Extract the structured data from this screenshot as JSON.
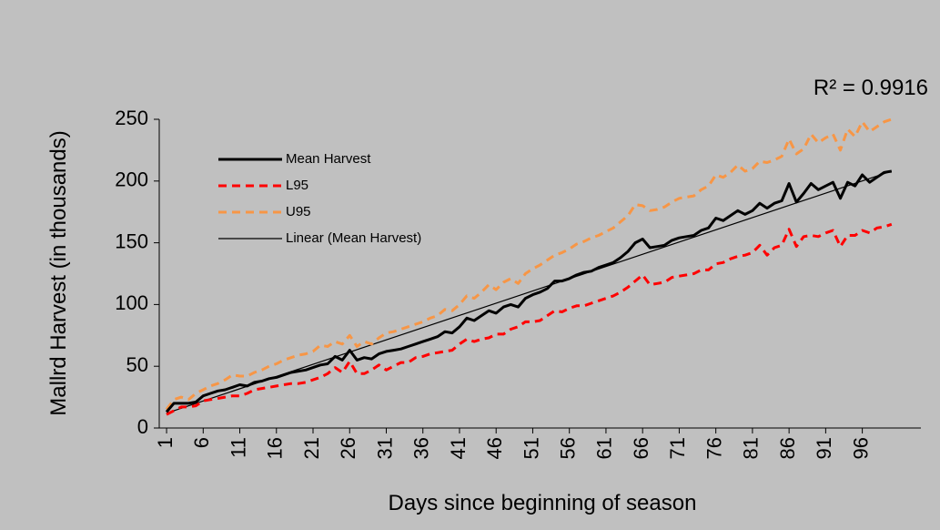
{
  "chart_data": {
    "type": "line",
    "ylabel": "Mallrd Harvest (in thousands)",
    "xlabel": "Days since beginning of season",
    "annotation": "R² = 0.9916",
    "x": [
      1,
      2,
      3,
      4,
      5,
      6,
      7,
      8,
      9,
      10,
      11,
      12,
      13,
      14,
      15,
      16,
      17,
      18,
      19,
      20,
      21,
      22,
      23,
      24,
      25,
      26,
      27,
      28,
      29,
      30,
      31,
      32,
      33,
      34,
      35,
      36,
      37,
      38,
      39,
      40,
      41,
      42,
      43,
      44,
      45,
      46,
      47,
      48,
      49,
      50,
      51,
      52,
      53,
      54,
      55,
      56,
      57,
      58,
      59,
      60,
      61,
      62,
      63,
      64,
      65,
      66,
      67,
      68,
      69,
      70,
      71,
      72,
      73,
      74,
      75,
      76,
      77,
      78,
      79,
      80,
      81,
      82,
      83,
      84,
      85,
      86,
      87,
      88,
      89,
      90,
      91,
      92,
      93,
      94,
      95,
      96,
      97,
      98,
      99,
      100
    ],
    "xlim": [
      0,
      104
    ],
    "xticks": [
      1,
      6,
      11,
      16,
      21,
      26,
      31,
      36,
      41,
      46,
      51,
      56,
      61,
      66,
      71,
      76,
      81,
      86,
      91,
      96
    ],
    "ylim": [
      0,
      250
    ],
    "yticks": [
      0,
      50,
      100,
      150,
      200,
      250
    ],
    "series": [
      {
        "name": "Mean Harvest",
        "color": "#000000",
        "dash": false,
        "width": 3,
        "values": [
          13,
          20,
          20,
          20,
          21,
          26,
          28,
          30,
          31,
          33,
          35,
          34,
          37,
          38,
          40,
          41,
          43,
          45,
          46,
          47,
          49,
          51,
          52,
          58,
          55,
          63,
          55,
          57,
          56,
          60,
          62,
          63,
          64,
          66,
          68,
          70,
          72,
          74,
          78,
          77,
          82,
          89,
          87,
          91,
          95,
          93,
          98,
          100,
          98,
          105,
          108,
          110,
          113,
          119,
          119,
          121,
          124,
          126,
          127,
          130,
          132,
          134,
          138,
          143,
          150,
          153,
          146,
          147,
          148,
          152,
          154,
          155,
          156,
          160,
          162,
          170,
          168,
          172,
          176,
          173,
          176,
          182,
          178,
          182,
          184,
          198,
          183,
          190,
          198,
          193,
          196,
          199,
          186,
          199,
          196,
          205,
          199,
          203,
          207,
          208
        ]
      },
      {
        "name": "L95",
        "color": "#ff0000",
        "dash": true,
        "width": 3,
        "values": [
          11,
          14,
          17,
          17,
          18,
          22,
          23,
          24,
          25,
          26,
          26,
          28,
          31,
          32,
          33,
          34,
          35,
          36,
          36,
          37,
          39,
          41,
          44,
          49,
          45,
          54,
          44,
          44,
          47,
          51,
          47,
          50,
          53,
          53,
          57,
          58,
          60,
          61,
          62,
          63,
          68,
          72,
          70,
          72,
          73,
          76,
          76,
          80,
          82,
          86,
          86,
          87,
          91,
          95,
          94,
          97,
          99,
          99,
          101,
          103,
          105,
          107,
          110,
          114,
          119,
          124,
          116,
          117,
          118,
          122,
          123,
          124,
          125,
          128,
          128,
          133,
          134,
          137,
          139,
          140,
          142,
          148,
          140,
          146,
          148,
          161,
          147,
          155,
          156,
          155,
          158,
          160,
          147,
          156,
          156,
          160,
          158,
          162,
          163,
          165
        ]
      },
      {
        "name": "U95",
        "color": "#f79646",
        "dash": true,
        "width": 3,
        "values": [
          15,
          23,
          25,
          23,
          28,
          31,
          34,
          36,
          39,
          43,
          42,
          42,
          45,
          47,
          50,
          52,
          55,
          57,
          59,
          60,
          62,
          67,
          66,
          70,
          68,
          75,
          66,
          70,
          68,
          73,
          77,
          78,
          80,
          82,
          84,
          86,
          89,
          91,
          96,
          95,
          100,
          107,
          105,
          110,
          116,
          112,
          118,
          121,
          117,
          125,
          129,
          132,
          136,
          140,
          142,
          145,
          149,
          151,
          154,
          156,
          159,
          162,
          167,
          172,
          181,
          180,
          176,
          177,
          179,
          183,
          186,
          187,
          188,
          193,
          196,
          205,
          203,
          207,
          213,
          208,
          210,
          216,
          215,
          217,
          220,
          234,
          222,
          226,
          238,
          231,
          235,
          238,
          225,
          242,
          236,
          248,
          240,
          244,
          248,
          250
        ]
      }
    ],
    "trendline": {
      "name": "Linear (Mean Harvest)",
      "color": "#000000",
      "x": [
        1,
        100
      ],
      "values": [
        12,
        208
      ]
    }
  }
}
